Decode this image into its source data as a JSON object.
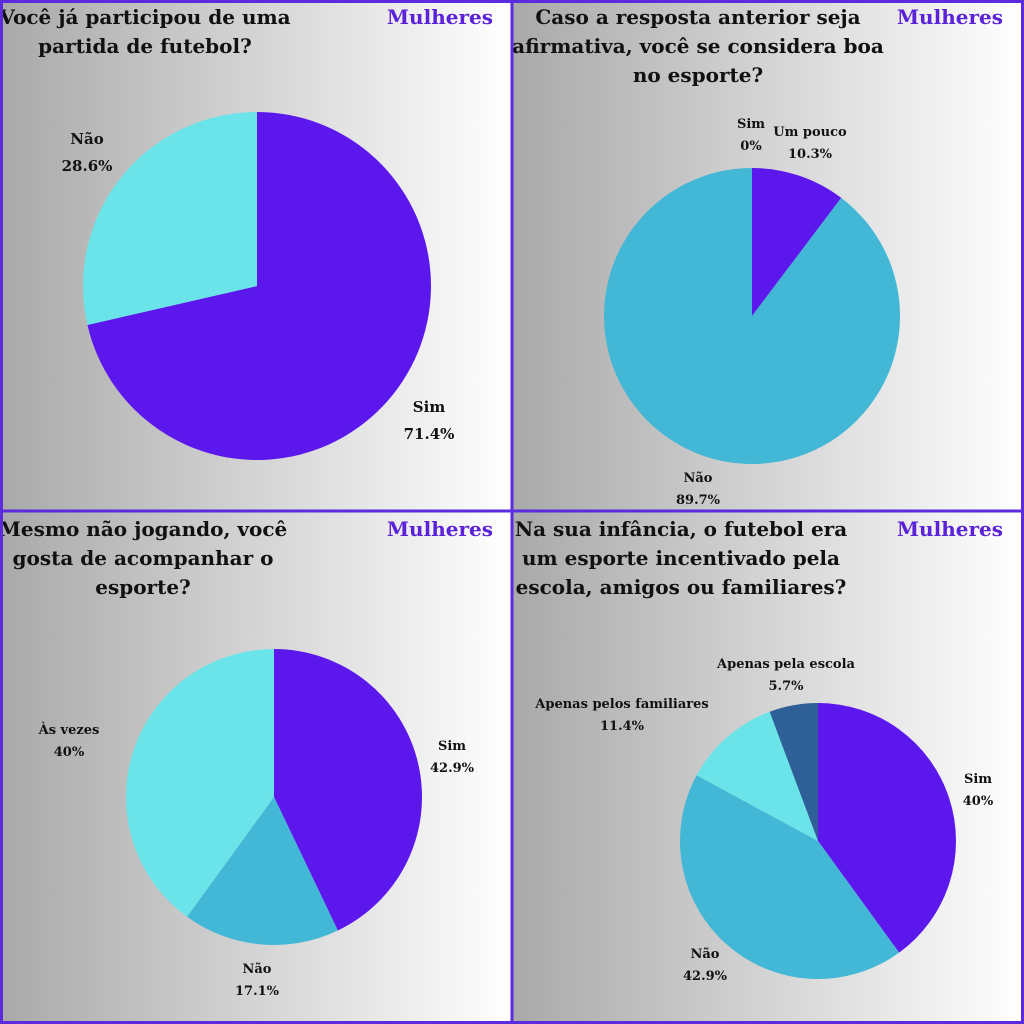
{
  "colors": {
    "border": "#5b2be0",
    "tag": "#5b22d9"
  },
  "chart_data": [
    {
      "type": "pie",
      "title_lines": [
        "Você já participou de uma",
        "partida de futebol?"
      ],
      "tag": "Mulheres",
      "slices": [
        {
          "label": "Sim",
          "value": 71.4,
          "display": "71.4%",
          "color": "#5c17ec"
        },
        {
          "label": "Não",
          "value": 28.6,
          "display": "28.6%",
          "color": "#6ae4e9"
        }
      ]
    },
    {
      "type": "pie",
      "title_lines": [
        "Caso a resposta anterior seja",
        "afirmativa, você se considera boa",
        "no esporte?"
      ],
      "tag": "Mulheres",
      "slices": [
        {
          "label": "Sim",
          "value": 0,
          "display": "0%",
          "color": "#6ae4e9"
        },
        {
          "label": "Um pouco",
          "value": 10.3,
          "display": "10.3%",
          "color": "#5c17ec"
        },
        {
          "label": "Não",
          "value": 89.7,
          "display": "89.7%",
          "color": "#42b8d6"
        }
      ]
    },
    {
      "type": "pie",
      "title_lines": [
        "Mesmo não jogando, você",
        "gosta de acompanhar o",
        "esporte?"
      ],
      "tag": "Mulheres",
      "slices": [
        {
          "label": "Sim",
          "value": 42.9,
          "display": "42.9%",
          "color": "#5c17ec"
        },
        {
          "label": "Não",
          "value": 17.1,
          "display": "17.1%",
          "color": "#42b8d6"
        },
        {
          "label": "Às vezes",
          "value": 40,
          "display": "40%",
          "color": "#6ae4e9"
        }
      ]
    },
    {
      "type": "pie",
      "title_lines": [
        "Na sua infância, o futebol era",
        "um esporte incentivado pela",
        "escola, amigos ou familiares?"
      ],
      "tag": "Mulheres",
      "slices": [
        {
          "label": "Sim",
          "value": 40,
          "display": "40%",
          "color": "#5c17ec"
        },
        {
          "label": "Não",
          "value": 42.9,
          "display": "42.9%",
          "color": "#42b8d6"
        },
        {
          "label": "Apenas pelos familiares",
          "value": 11.4,
          "display": "11.4%",
          "color": "#6ae4e9"
        },
        {
          "label": "Apenas pela escola",
          "value": 5.7,
          "display": "5.7%",
          "color": "#2e5f96"
        }
      ]
    }
  ]
}
